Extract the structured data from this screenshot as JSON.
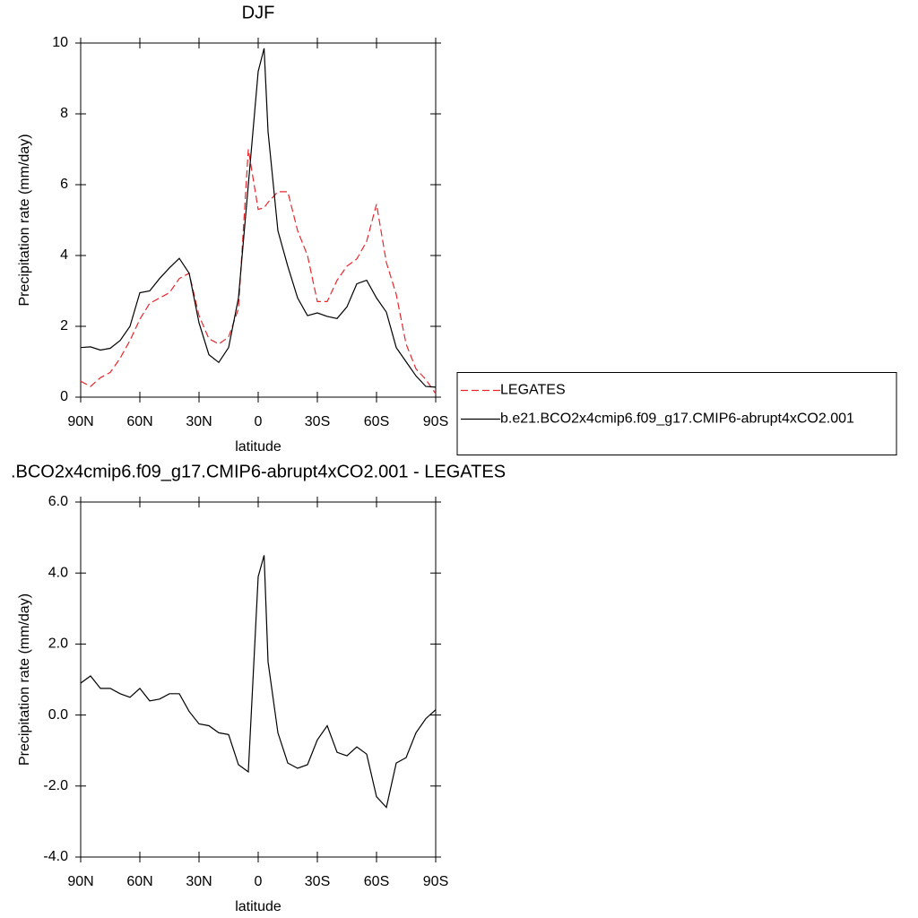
{
  "chart_data": [
    {
      "type": "line",
      "title": "DJF",
      "x_label": "latitude",
      "y_label": "Precipitation rate (mm/day)",
      "x": [
        90,
        85,
        80,
        75,
        70,
        65,
        60,
        55,
        50,
        45,
        40,
        35,
        30,
        25,
        20,
        15,
        10,
        5,
        0,
        -3,
        -5,
        -10,
        -15,
        -20,
        -25,
        -30,
        -35,
        -40,
        -45,
        -50,
        -55,
        -60,
        -65,
        -70,
        -75,
        -80,
        -85,
        -90
      ],
      "xlim": [
        90,
        -90
      ],
      "xticks": [
        {
          "value": 90,
          "label": "90N"
        },
        {
          "value": 60,
          "label": "60N"
        },
        {
          "value": 30,
          "label": "30N"
        },
        0,
        {
          "value": -30,
          "label": "30S"
        },
        {
          "value": -60,
          "label": "60S"
        },
        {
          "value": -90,
          "label": "90S"
        }
      ],
      "ylim": [
        0,
        10
      ],
      "yticks": [
        0,
        2,
        4,
        6,
        8,
        10
      ],
      "legend": "right",
      "series": [
        {
          "name": "LEGATES",
          "color": "#e8262b",
          "dashed": true,
          "values": [
            0.45,
            0.3,
            0.55,
            0.7,
            1.1,
            1.6,
            2.2,
            2.65,
            2.8,
            2.95,
            3.35,
            3.5,
            2.3,
            1.65,
            1.5,
            1.7,
            2.5,
            7.0,
            5.3,
            5.35,
            5.5,
            5.8,
            5.8,
            4.7,
            4.0,
            2.7,
            2.7,
            3.3,
            3.7,
            3.9,
            4.4,
            5.45,
            3.8,
            2.9,
            1.5,
            0.8,
            0.5,
            0.1
          ]
        },
        {
          "name": "b.e21.BCO2x4cmip6.f09_g17.CMIP6-abrupt4xCO2.001",
          "color": "#000000",
          "dashed": false,
          "values": [
            1.4,
            1.42,
            1.33,
            1.38,
            1.6,
            2.0,
            2.95,
            3.0,
            3.35,
            3.65,
            3.92,
            3.5,
            2.1,
            1.2,
            0.98,
            1.4,
            2.8,
            6.0,
            9.2,
            9.85,
            7.5,
            4.7,
            3.7,
            2.8,
            2.3,
            2.38,
            2.28,
            2.22,
            2.55,
            3.2,
            3.3,
            2.8,
            2.4,
            1.4,
            1.0,
            0.6,
            0.3,
            0.28
          ]
        }
      ]
    },
    {
      "type": "line",
      "title": ".BCO2x4cmip6.f09_g17.CMIP6-abrupt4xCO2.001 - LEGATES",
      "x_label": "latitude",
      "y_label": "Precipitation rate (mm/day)",
      "x": [
        90,
        85,
        80,
        75,
        70,
        65,
        60,
        55,
        50,
        45,
        40,
        35,
        30,
        25,
        20,
        15,
        10,
        5,
        0,
        -3,
        -5,
        -10,
        -15,
        -20,
        -25,
        -30,
        -35,
        -40,
        -45,
        -50,
        -55,
        -60,
        -65,
        -70,
        -75,
        -80,
        -85,
        -90
      ],
      "xlim": [
        90,
        -90
      ],
      "xticks": [
        {
          "value": 90,
          "label": "90N"
        },
        {
          "value": 60,
          "label": "60N"
        },
        {
          "value": 30,
          "label": "30N"
        },
        0,
        {
          "value": -30,
          "label": "30S"
        },
        {
          "value": -60,
          "label": "60S"
        },
        {
          "value": -90,
          "label": "90S"
        }
      ],
      "ylim": [
        -4,
        6
      ],
      "yticks": [
        {
          "value": -4,
          "label": "-4.0"
        },
        {
          "value": -2,
          "label": "-2.0"
        },
        {
          "value": 0,
          "label": "0.0"
        },
        {
          "value": 2,
          "label": "2.0"
        },
        {
          "value": 4,
          "label": "4.0"
        },
        {
          "value": 6,
          "label": "6.0"
        }
      ],
      "series": [
        {
          "color": "#000000",
          "dashed": false,
          "values": [
            0.9,
            1.1,
            0.75,
            0.75,
            0.6,
            0.5,
            0.75,
            0.4,
            0.45,
            0.6,
            0.6,
            0.1,
            -0.25,
            -0.3,
            -0.5,
            -0.55,
            -1.4,
            -1.6,
            3.9,
            4.5,
            1.5,
            -0.5,
            -1.35,
            -1.5,
            -1.4,
            -0.7,
            -0.3,
            -1.05,
            -1.15,
            -0.9,
            -1.1,
            -2.3,
            -2.6,
            -1.35,
            -1.2,
            -0.5,
            -0.1,
            0.15
          ]
        }
      ]
    }
  ]
}
